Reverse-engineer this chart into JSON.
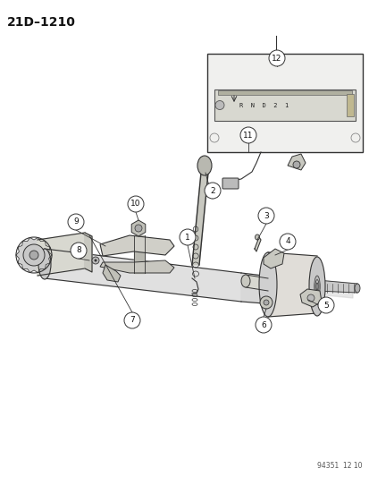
{
  "title": "21D–1210",
  "footer": "94351  12 10",
  "bg_color": "#ffffff",
  "line_color": "#333333",
  "text_color": "#111111",
  "fig_width": 4.14,
  "fig_height": 5.33,
  "dpi": 100
}
